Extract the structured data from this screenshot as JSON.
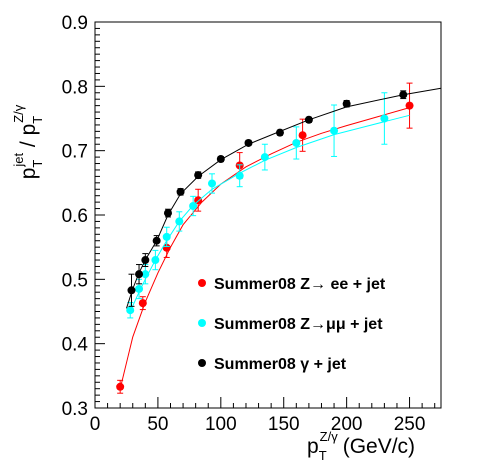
{
  "chart_data": {
    "type": "scatter",
    "xlim": [
      0,
      275
    ],
    "ylim": [
      0.3,
      0.9
    ],
    "x_ticks": [
      0,
      50,
      100,
      150,
      200,
      250
    ],
    "y_ticks": [
      0.3,
      0.4,
      0.5,
      0.6,
      0.7,
      0.8,
      0.9
    ],
    "x_tick_labels": [
      "0",
      "50",
      "100",
      "150",
      "200",
      "250"
    ],
    "y_tick_labels": [
      "0.3",
      "0.4",
      "0.5",
      "0.6",
      "0.7",
      "0.8",
      "0.9"
    ],
    "xlabel": {
      "base": "p",
      "sub": "T",
      "sup": "Z/γ",
      "unit": "(GeV/c)"
    },
    "ylabel": {
      "num_base": "p",
      "num_sub": "T",
      "num_sup": "jet",
      "slash": "/",
      "den_base": "p",
      "den_sub": "T",
      "den_sup": "Z/γ"
    },
    "grid": false,
    "legend_position": "center-right",
    "series": [
      {
        "name": "Summer08 Z→ ee + jet",
        "color": "#ff0000",
        "x": [
          20,
          38,
          57,
          82,
          115,
          165,
          250
        ],
        "y": [
          0.333,
          0.463,
          0.549,
          0.623,
          0.677,
          0.724,
          0.77
        ],
        "err": [
          0.01,
          0.01,
          0.015,
          0.017,
          0.02,
          0.025,
          0.035
        ],
        "fit_curve": [
          [
            20,
            0.33
          ],
          [
            30,
            0.41
          ],
          [
            40,
            0.465
          ],
          [
            50,
            0.51
          ],
          [
            60,
            0.55
          ],
          [
            70,
            0.585
          ],
          [
            85,
            0.62
          ],
          [
            100,
            0.648
          ],
          [
            120,
            0.675
          ],
          [
            140,
            0.695
          ],
          [
            160,
            0.713
          ],
          [
            180,
            0.727
          ],
          [
            200,
            0.739
          ],
          [
            225,
            0.753
          ],
          [
            250,
            0.767
          ]
        ]
      },
      {
        "name": "Summer08 Z→μμ + jet",
        "color": "#00ffff",
        "x": [
          28,
          35,
          40,
          48,
          57,
          67,
          78,
          93,
          115,
          135,
          160,
          190,
          230
        ],
        "y": [
          0.452,
          0.485,
          0.508,
          0.53,
          0.566,
          0.59,
          0.614,
          0.649,
          0.661,
          0.69,
          0.712,
          0.731,
          0.75
        ],
        "err": [
          0.012,
          0.015,
          0.015,
          0.015,
          0.015,
          0.015,
          0.015,
          0.015,
          0.017,
          0.02,
          0.025,
          0.04,
          0.04
        ],
        "fit_curve": [
          [
            28,
            0.45
          ],
          [
            35,
            0.48
          ],
          [
            40,
            0.5
          ],
          [
            48,
            0.53
          ],
          [
            57,
            0.56
          ],
          [
            67,
            0.59
          ],
          [
            78,
            0.615
          ],
          [
            93,
            0.64
          ],
          [
            115,
            0.665
          ],
          [
            135,
            0.685
          ],
          [
            160,
            0.705
          ],
          [
            190,
            0.725
          ],
          [
            230,
            0.745
          ],
          [
            250,
            0.755
          ]
        ]
      },
      {
        "name": "Summer08 γ + jet",
        "color": "#000000",
        "x": [
          29,
          35,
          40,
          49,
          58,
          68,
          82,
          100,
          122,
          147,
          170,
          200,
          245
        ],
        "y": [
          0.483,
          0.508,
          0.53,
          0.56,
          0.603,
          0.636,
          0.662,
          0.687,
          0.712,
          0.728,
          0.748,
          0.773,
          0.787
        ],
        "err": [
          0.025,
          0.015,
          0.01,
          0.008,
          0.006,
          0.005,
          0.005,
          0.004,
          0.004,
          0.004,
          0.004,
          0.005,
          0.006
        ],
        "fit_curve": [
          [
            25,
            0.455
          ],
          [
            30,
            0.485
          ],
          [
            35,
            0.51
          ],
          [
            40,
            0.53
          ],
          [
            49,
            0.56
          ],
          [
            58,
            0.6
          ],
          [
            68,
            0.633
          ],
          [
            82,
            0.66
          ],
          [
            100,
            0.686
          ],
          [
            122,
            0.71
          ],
          [
            147,
            0.73
          ],
          [
            170,
            0.748
          ],
          [
            200,
            0.768
          ],
          [
            245,
            0.787
          ],
          [
            275,
            0.797
          ]
        ]
      }
    ]
  }
}
